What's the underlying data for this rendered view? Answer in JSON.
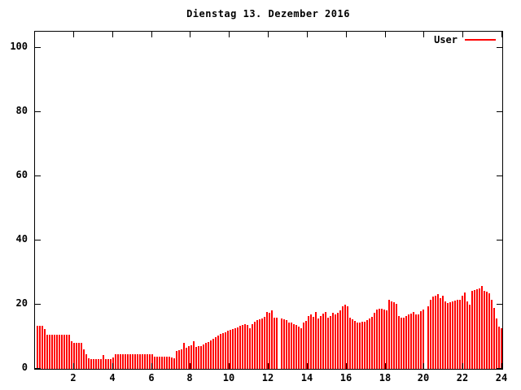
{
  "title": "Dienstag 13. Dezember 2016",
  "legend": {
    "label": "User",
    "color": "#ff0000"
  },
  "colors": {
    "series": "#ff0000",
    "axis": "#000000",
    "background": "#ffffff"
  },
  "chart_data": {
    "type": "bar",
    "title": "Dienstag 13. Dezember 2016",
    "xlabel": "",
    "ylabel": "",
    "x_unit": "hours 0-24",
    "x_range": [
      0,
      24
    ],
    "ylim": [
      0,
      105
    ],
    "grid": false,
    "legend_position": "top-right",
    "xticks": [
      2,
      4,
      6,
      8,
      10,
      12,
      14,
      16,
      18,
      20,
      22,
      24
    ],
    "yticks": [
      0,
      20,
      40,
      60,
      80,
      100
    ],
    "series": [
      {
        "name": "User",
        "color": "#ff0000",
        "note": "percent per ~7.5-minute sample over 24h; 0 = missing sample gap",
        "values": [
          13.5,
          13.5,
          13.5,
          12.3,
          10.6,
          10.6,
          10.6,
          10.6,
          10.6,
          10.6,
          10.6,
          10.6,
          10.6,
          10.6,
          8.5,
          8.0,
          8.0,
          8.0,
          8.0,
          6.0,
          4.5,
          3.2,
          3.0,
          3.0,
          3.0,
          3.0,
          3.0,
          4.2,
          3.0,
          3.0,
          3.0,
          3.5,
          4.6,
          4.6,
          4.6,
          4.6,
          4.6,
          4.6,
          4.6,
          4.6,
          4.6,
          4.6,
          4.6,
          4.6,
          4.6,
          4.6,
          4.6,
          4.6,
          3.8,
          3.8,
          3.8,
          3.8,
          3.8,
          3.8,
          3.8,
          3.6,
          3.4,
          5.5,
          5.8,
          6.0,
          8.0,
          6.5,
          7.0,
          7.4,
          8.5,
          6.8,
          7.0,
          7.2,
          7.6,
          8.0,
          8.4,
          8.9,
          9.3,
          9.9,
          10.4,
          11.0,
          11.2,
          11.4,
          11.8,
          12.1,
          12.3,
          12.7,
          12.9,
          13.4,
          13.6,
          14.0,
          13.6,
          12.7,
          14.0,
          14.8,
          15.3,
          15.5,
          15.7,
          16.1,
          17.8,
          17.4,
          18.2,
          16.0,
          16.0,
          0,
          15.7,
          15.5,
          15.3,
          14.5,
          14.4,
          14.0,
          13.7,
          13.2,
          12.7,
          14.4,
          15.0,
          16.5,
          17.0,
          16.3,
          17.8,
          15.7,
          16.5,
          17.2,
          17.8,
          16.0,
          16.5,
          17.5,
          17.0,
          17.5,
          18.2,
          19.5,
          20.0,
          19.5,
          16.0,
          15.5,
          15.0,
          14.4,
          14.5,
          14.6,
          14.8,
          15.3,
          15.7,
          16.1,
          17.5,
          18.6,
          18.7,
          18.8,
          18.5,
          18.2,
          21.4,
          21.0,
          20.8,
          20.3,
          16.5,
          16.0,
          15.9,
          16.5,
          16.9,
          17.2,
          17.6,
          17.0,
          16.9,
          18.0,
          18.6,
          0,
          19.5,
          21.6,
          22.5,
          22.9,
          23.3,
          22.0,
          22.9,
          21.0,
          20.5,
          20.8,
          21.0,
          21.2,
          21.4,
          21.6,
          22.9,
          23.7,
          21.0,
          20.0,
          24.3,
          24.5,
          24.8,
          25.0,
          25.8,
          24.3,
          24.0,
          23.5,
          21.6,
          19.0,
          15.7,
          13.1,
          12.7
        ]
      }
    ]
  }
}
